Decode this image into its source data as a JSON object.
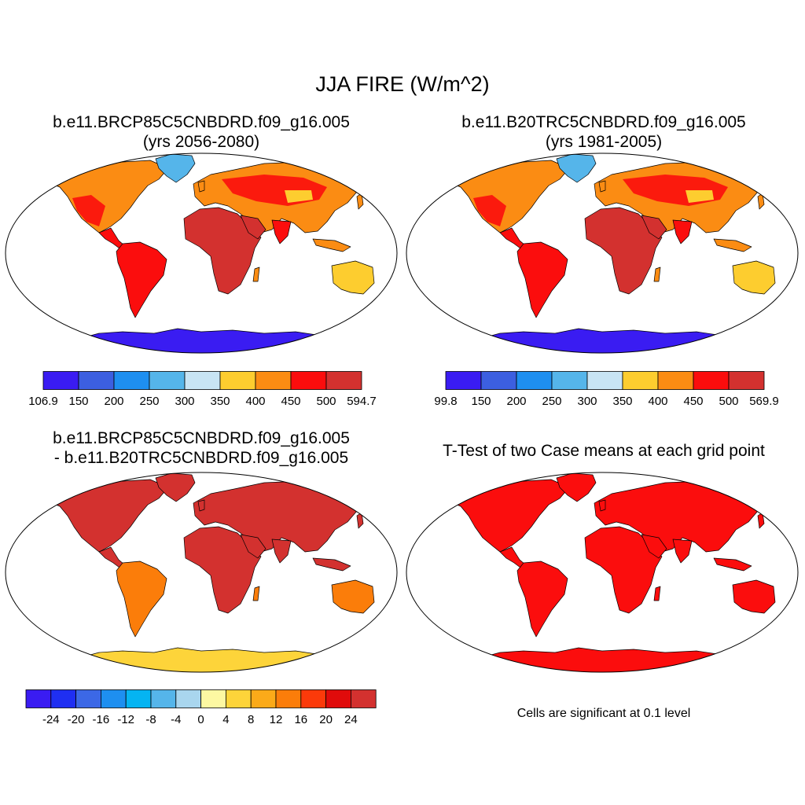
{
  "title": "JJA FIRE (W/m^2)",
  "panels": {
    "p1": {
      "title_line1": "b.e11.BRCP85C5CNBDRD.f09_g16.005",
      "title_line2": "(yrs 2056-2080)",
      "scheme": "mean"
    },
    "p2": {
      "title_line1": "b.e11.B20TRC5CNBDRD.f09_g16.005",
      "title_line2": "(yrs 1981-2005)",
      "scheme": "mean"
    },
    "p3": {
      "title_line1": "b.e11.BRCP85C5CNBDRD.f09_g16.005",
      "title_line2": "- b.e11.B20TRC5CNBDRD.f09_g16.005",
      "scheme": "diff"
    },
    "p4": {
      "title_line1": "T-Test of two Case means at each grid point",
      "scheme": "ttest",
      "note": "Cells are significant at 0.1 level"
    }
  },
  "colorbars": {
    "cb1": {
      "labels": [
        "106.9",
        "150",
        "200",
        "250",
        "300",
        "350",
        "400",
        "450",
        "500",
        "594.7"
      ],
      "colors": [
        "#3a1cf2",
        "#3c5fe0",
        "#1e8ff0",
        "#55b5ea",
        "#c8e4f4",
        "#fdcd2f",
        "#fb8c13",
        "#fb0d0d",
        "#d3312f"
      ]
    },
    "cb2": {
      "labels": [
        "99.8",
        "150",
        "200",
        "250",
        "300",
        "350",
        "400",
        "450",
        "500",
        "569.9"
      ],
      "colors": [
        "#3a1cf2",
        "#3c5fe0",
        "#1e8ff0",
        "#55b5ea",
        "#c8e4f4",
        "#fdcd2f",
        "#fb8c13",
        "#fb0d0d",
        "#d3312f"
      ]
    },
    "cb3": {
      "labels": [
        "-24",
        "-20",
        "-16",
        "-12",
        "-8",
        "-4",
        "0",
        "4",
        "8",
        "12",
        "16",
        "20",
        "24"
      ],
      "colors": [
        "#3a1cf2",
        "#1f2ff2",
        "#3c68e6",
        "#1e8ff0",
        "#05b4f2",
        "#55b5ea",
        "#a9d6ee",
        "#fdf8a2",
        "#fdd43a",
        "#fbaa19",
        "#fb7d0a",
        "#fb3a0a",
        "#e00b0b",
        "#d3312f"
      ]
    }
  },
  "colors": {
    "land_mean_base": "#fb8c13",
    "land_mean_hot": "#fb0d0d",
    "land_mean_hottest": "#d3312f",
    "land_mean_cool": "#fdcd2f",
    "ice": "#3a1cf2",
    "greenland": "#55b5ea",
    "diff_base": "#d3312f",
    "diff_mid": "#fb7d0a",
    "diff_antarctica": "#fdd43a",
    "ttest": "#fb0d0d",
    "outline": "#000000"
  }
}
